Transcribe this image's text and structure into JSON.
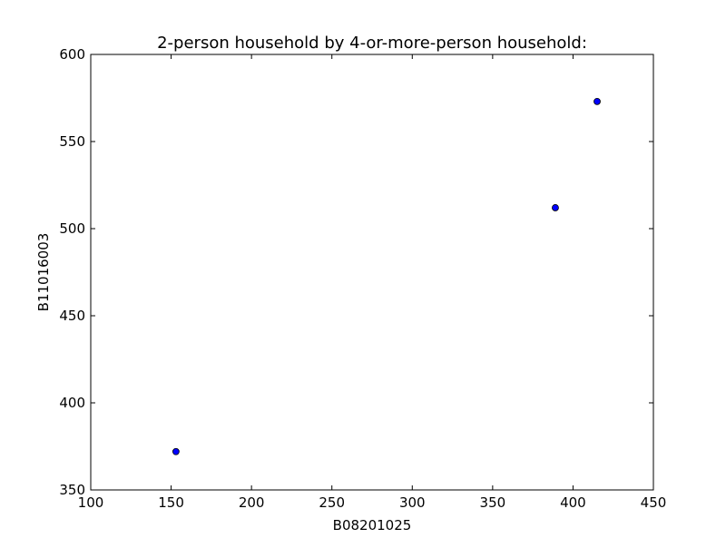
{
  "chart_data": {
    "type": "scatter",
    "title": "2-person household by 4-or-more-person household:",
    "xlabel": "B08201025",
    "ylabel": "B11016003",
    "xlim": [
      100,
      450
    ],
    "ylim": [
      350,
      600
    ],
    "xticks": [
      100,
      150,
      200,
      250,
      300,
      350,
      400,
      450
    ],
    "yticks": [
      350,
      400,
      450,
      500,
      550,
      600
    ],
    "grid": false,
    "legend": "none",
    "series": [
      {
        "x": [
          153,
          389,
          415
        ],
        "y": [
          372,
          512,
          573
        ],
        "color": "#0000ff"
      }
    ]
  }
}
